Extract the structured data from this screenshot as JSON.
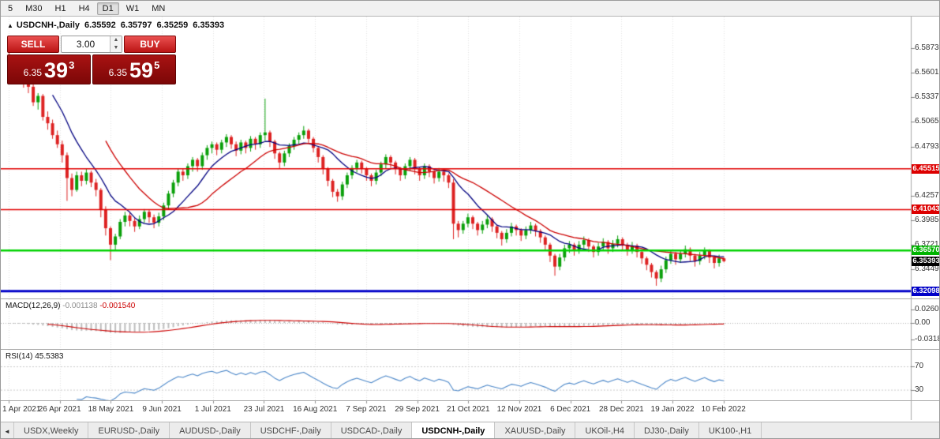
{
  "toolbar": {
    "timeframes": [
      "5",
      "M30",
      "H1",
      "H4",
      "D1",
      "W1",
      "MN"
    ],
    "active": "D1"
  },
  "chart_header": {
    "collapse_icon": "▲",
    "symbol": "USDCNH-,Daily",
    "open": "6.35592",
    "high": "6.35797",
    "low": "6.35259",
    "close": "6.35393"
  },
  "trade_panel": {
    "sell_label": "SELL",
    "buy_label": "BUY",
    "volume": "3.00",
    "sell_price": {
      "small": "6.35",
      "big": "39",
      "sup": "3"
    },
    "buy_price": {
      "small": "6.35",
      "big": "59",
      "sup": "5"
    }
  },
  "indicator_labels": {
    "macd_name": "MACD(12,26,9)",
    "macd_main": "-0.001138",
    "macd_signal": "-0.001540",
    "rsi_name": "RSI(14)",
    "rsi_value": "45.5383"
  },
  "tabs": {
    "scroll_left_icon": "◄",
    "items": [
      "USDX,Weekly",
      "EURUSD-,Daily",
      "AUDUSD-,Daily",
      "USDCHF-,Daily",
      "USDCAD-,Daily",
      "USDCNH-,Daily",
      "XAUUSD-,Daily",
      "UKOil-,H4",
      "DJ30-,Daily",
      "UK100-,H1"
    ],
    "active_index": 5
  },
  "chart_data": {
    "type": "candlestick",
    "symbol": "USDCNH-",
    "timeframe": "Daily",
    "up_color": "#0aa00a",
    "down_color": "#dd2222",
    "x_dates": [
      "1 Apr 2021",
      "26 Apr 2021",
      "18 May 2021",
      "9 Jun 2021",
      "1 Jul 2021",
      "23 Jul 2021",
      "16 Aug 2021",
      "7 Sep 2021",
      "29 Sep 2021",
      "21 Oct 2021",
      "12 Nov 2021",
      "6 Dec 2021",
      "28 Dec 2021",
      "19 Jan 2022",
      "10 Feb 2022"
    ],
    "y_axis": {
      "ticks": [
        "6.58730",
        "6.56010",
        "6.53370",
        "6.50650",
        "6.47930",
        "6.42570",
        "6.39850",
        "6.37210",
        "6.34490"
      ],
      "badges": [
        {
          "text": "6.45515",
          "color": "#dd0000",
          "kind": "resistance-line"
        },
        {
          "text": "6.41043",
          "color": "#dd0000",
          "kind": "resistance-line"
        },
        {
          "text": "6.36570",
          "color": "#00b400",
          "kind": "support-line"
        },
        {
          "text": "6.35393",
          "color": "#000000",
          "kind": "current-price"
        },
        {
          "text": "6.32098",
          "color": "#0000c8",
          "kind": "support-line"
        }
      ]
    },
    "hlines": [
      {
        "price": 6.45515,
        "color": "#e00000",
        "width": 1.5
      },
      {
        "price": 6.41043,
        "color": "#e00000",
        "width": 1.5
      },
      {
        "price": 6.3657,
        "color": "#00d200",
        "width": 2.5
      },
      {
        "price": 6.32098,
        "color": "#0000c8",
        "width": 3
      }
    ],
    "overlays": [
      {
        "name": "ma-fast",
        "period": 10,
        "color": "#000080"
      },
      {
        "name": "ma-slow",
        "period": 21,
        "color": "#cc0000"
      }
    ],
    "macd": {
      "params": [
        12,
        26,
        9
      ],
      "axis_ticks": [
        "0.02607",
        "0.00",
        "-0.03187"
      ],
      "bar_color": "#bdbdbd",
      "signal_color": "#cc0000"
    },
    "rsi": {
      "period": 14,
      "axis_ticks": [
        "70",
        "30"
      ],
      "levels": [
        70,
        30
      ],
      "color": "#4a86c8"
    },
    "candles": [
      [
        6.58,
        6.583,
        6.566,
        6.572
      ],
      [
        6.572,
        6.576,
        6.556,
        6.563
      ],
      [
        6.563,
        6.566,
        6.55,
        6.558
      ],
      [
        6.558,
        6.564,
        6.544,
        6.55
      ],
      [
        6.55,
        6.556,
        6.538,
        6.545
      ],
      [
        6.545,
        6.549,
        6.524,
        6.528
      ],
      [
        6.528,
        6.538,
        6.52,
        6.535
      ],
      [
        6.535,
        6.537,
        6.508,
        6.512
      ],
      [
        6.512,
        6.518,
        6.498,
        6.505
      ],
      [
        6.505,
        6.509,
        6.488,
        6.492
      ],
      [
        6.492,
        6.497,
        6.478,
        6.482
      ],
      [
        6.482,
        6.486,
        6.462,
        6.47
      ],
      [
        6.47,
        6.473,
        6.42,
        6.445
      ],
      [
        6.445,
        6.45,
        6.425,
        6.432
      ],
      [
        6.432,
        6.452,
        6.43,
        6.448
      ],
      [
        6.448,
        6.452,
        6.436,
        6.442
      ],
      [
        6.442,
        6.455,
        6.438,
        6.451
      ],
      [
        6.451,
        6.453,
        6.435,
        6.44
      ],
      [
        6.44,
        6.444,
        6.425,
        6.432
      ],
      [
        6.432,
        6.434,
        6.402,
        6.41
      ],
      [
        6.41,
        6.414,
        6.382,
        6.39
      ],
      [
        6.39,
        6.392,
        6.355,
        6.372
      ],
      [
        6.372,
        6.384,
        6.366,
        6.381
      ],
      [
        6.381,
        6.4,
        6.378,
        6.397
      ],
      [
        6.397,
        6.408,
        6.392,
        6.404
      ],
      [
        6.404,
        6.407,
        6.392,
        6.398
      ],
      [
        6.398,
        6.401,
        6.386,
        6.392
      ],
      [
        6.392,
        6.404,
        6.389,
        6.4
      ],
      [
        6.4,
        6.411,
        6.396,
        6.408
      ],
      [
        6.408,
        6.41,
        6.396,
        6.402
      ],
      [
        6.402,
        6.405,
        6.39,
        6.396
      ],
      [
        6.396,
        6.407,
        6.392,
        6.403
      ],
      [
        6.403,
        6.418,
        6.399,
        6.415
      ],
      [
        6.415,
        6.431,
        6.411,
        6.428
      ],
      [
        6.428,
        6.443,
        6.424,
        6.44
      ],
      [
        6.44,
        6.455,
        6.436,
        6.452
      ],
      [
        6.452,
        6.455,
        6.442,
        6.448
      ],
      [
        6.448,
        6.461,
        6.444,
        6.458
      ],
      [
        6.458,
        6.468,
        6.452,
        6.465
      ],
      [
        6.465,
        6.467,
        6.452,
        6.458
      ],
      [
        6.458,
        6.473,
        6.454,
        6.47
      ],
      [
        6.47,
        6.481,
        6.465,
        6.478
      ],
      [
        6.478,
        6.485,
        6.472,
        6.482
      ],
      [
        6.482,
        6.484,
        6.47,
        6.476
      ],
      [
        6.476,
        6.487,
        6.472,
        6.484
      ],
      [
        6.484,
        6.493,
        6.479,
        6.49
      ],
      [
        6.49,
        6.492,
        6.477,
        6.482
      ],
      [
        6.482,
        6.485,
        6.469,
        6.475
      ],
      [
        6.475,
        6.487,
        6.471,
        6.484
      ],
      [
        6.484,
        6.486,
        6.472,
        6.478
      ],
      [
        6.478,
        6.491,
        6.474,
        6.488
      ],
      [
        6.488,
        6.49,
        6.476,
        6.482
      ],
      [
        6.482,
        6.495,
        6.478,
        6.492
      ],
      [
        6.492,
        6.532,
        6.486,
        6.495
      ],
      [
        6.495,
        6.497,
        6.479,
        6.485
      ],
      [
        6.485,
        6.487,
        6.466,
        6.472
      ],
      [
        6.472,
        6.474,
        6.455,
        6.462
      ],
      [
        6.462,
        6.475,
        6.458,
        6.472
      ],
      [
        6.472,
        6.483,
        6.468,
        6.48
      ],
      [
        6.48,
        6.49,
        6.476,
        6.487
      ],
      [
        6.487,
        6.495,
        6.482,
        6.492
      ],
      [
        6.492,
        6.502,
        6.488,
        6.497
      ],
      [
        6.497,
        6.499,
        6.483,
        6.488
      ],
      [
        6.488,
        6.49,
        6.473,
        6.478
      ],
      [
        6.478,
        6.48,
        6.462,
        6.468
      ],
      [
        6.468,
        6.47,
        6.449,
        6.455
      ],
      [
        6.455,
        6.457,
        6.436,
        6.442
      ],
      [
        6.442,
        6.444,
        6.424,
        6.43
      ],
      [
        6.43,
        6.433,
        6.419,
        6.425
      ],
      [
        6.425,
        6.441,
        6.421,
        6.438
      ],
      [
        6.438,
        6.451,
        6.434,
        6.448
      ],
      [
        6.448,
        6.459,
        6.444,
        6.456
      ],
      [
        6.456,
        6.465,
        6.451,
        6.462
      ],
      [
        6.462,
        6.464,
        6.45,
        6.455
      ],
      [
        6.455,
        6.457,
        6.442,
        6.448
      ],
      [
        6.448,
        6.45,
        6.436,
        6.442
      ],
      [
        6.442,
        6.454,
        6.438,
        6.451
      ],
      [
        6.451,
        6.463,
        6.447,
        6.46
      ],
      [
        6.46,
        6.471,
        6.455,
        6.468
      ],
      [
        6.468,
        6.47,
        6.456,
        6.462
      ],
      [
        6.462,
        6.464,
        6.449,
        6.455
      ],
      [
        6.455,
        6.457,
        6.442,
        6.448
      ],
      [
        6.448,
        6.461,
        6.444,
        6.458
      ],
      [
        6.458,
        6.468,
        6.453,
        6.465
      ],
      [
        6.465,
        6.467,
        6.449,
        6.455
      ],
      [
        6.455,
        6.457,
        6.442,
        6.448
      ],
      [
        6.448,
        6.461,
        6.444,
        6.458
      ],
      [
        6.458,
        6.46,
        6.446,
        6.452
      ],
      [
        6.452,
        6.454,
        6.439,
        6.445
      ],
      [
        6.445,
        6.456,
        6.441,
        6.452
      ],
      [
        6.452,
        6.454,
        6.441,
        6.448
      ],
      [
        6.448,
        6.45,
        6.434,
        6.44
      ],
      [
        6.44,
        6.444,
        6.378,
        6.395
      ],
      [
        6.395,
        6.398,
        6.38,
        6.388
      ],
      [
        6.388,
        6.398,
        6.384,
        6.395
      ],
      [
        6.395,
        6.406,
        6.391,
        6.402
      ],
      [
        6.402,
        6.404,
        6.389,
        6.395
      ],
      [
        6.395,
        6.397,
        6.382,
        6.388
      ],
      [
        6.388,
        6.398,
        6.384,
        6.394
      ],
      [
        6.394,
        6.404,
        6.39,
        6.4
      ],
      [
        6.4,
        6.402,
        6.386,
        6.392
      ],
      [
        6.392,
        6.394,
        6.379,
        6.385
      ],
      [
        6.385,
        6.387,
        6.371,
        6.378
      ],
      [
        6.378,
        6.389,
        6.374,
        6.385
      ],
      [
        6.385,
        6.396,
        6.381,
        6.392
      ],
      [
        6.392,
        6.394,
        6.382,
        6.388
      ],
      [
        6.388,
        6.39,
        6.376,
        6.382
      ],
      [
        6.382,
        6.392,
        6.378,
        6.388
      ],
      [
        6.388,
        6.397,
        6.384,
        6.393
      ],
      [
        6.393,
        6.395,
        6.381,
        6.387
      ],
      [
        6.387,
        6.389,
        6.374,
        6.38
      ],
      [
        6.38,
        6.382,
        6.366,
        6.372
      ],
      [
        6.372,
        6.374,
        6.353,
        6.36
      ],
      [
        6.36,
        6.362,
        6.338,
        6.348
      ],
      [
        6.348,
        6.362,
        6.344,
        6.358
      ],
      [
        6.358,
        6.372,
        6.354,
        6.368
      ],
      [
        6.368,
        6.376,
        6.363,
        6.372
      ],
      [
        6.372,
        6.374,
        6.36,
        6.366
      ],
      [
        6.366,
        6.376,
        6.362,
        6.372
      ],
      [
        6.372,
        6.381,
        6.368,
        6.377
      ],
      [
        6.377,
        6.379,
        6.364,
        6.37
      ],
      [
        6.37,
        6.372,
        6.358,
        6.364
      ],
      [
        6.364,
        6.374,
        6.36,
        6.37
      ],
      [
        6.37,
        6.379,
        6.366,
        6.375
      ],
      [
        6.375,
        6.377,
        6.362,
        6.368
      ],
      [
        6.368,
        6.377,
        6.364,
        6.373
      ],
      [
        6.373,
        6.382,
        6.369,
        6.378
      ],
      [
        6.378,
        6.38,
        6.366,
        6.372
      ],
      [
        6.372,
        6.374,
        6.36,
        6.366
      ],
      [
        6.366,
        6.375,
        6.362,
        6.371
      ],
      [
        6.371,
        6.373,
        6.358,
        6.364
      ],
      [
        6.364,
        6.366,
        6.351,
        6.357
      ],
      [
        6.357,
        6.359,
        6.344,
        6.35
      ],
      [
        6.35,
        6.352,
        6.336,
        6.342
      ],
      [
        6.342,
        6.344,
        6.327,
        6.335
      ],
      [
        6.335,
        6.349,
        6.331,
        6.345
      ],
      [
        6.345,
        6.359,
        6.341,
        6.355
      ],
      [
        6.355,
        6.366,
        6.351,
        6.362
      ],
      [
        6.362,
        6.364,
        6.35,
        6.356
      ],
      [
        6.356,
        6.366,
        6.352,
        6.362
      ],
      [
        6.362,
        6.371,
        6.358,
        6.367
      ],
      [
        6.367,
        6.369,
        6.354,
        6.36
      ],
      [
        6.36,
        6.362,
        6.348,
        6.354
      ],
      [
        6.354,
        6.364,
        6.35,
        6.36
      ],
      [
        6.36,
        6.369,
        6.356,
        6.365
      ],
      [
        6.365,
        6.367,
        6.352,
        6.358
      ],
      [
        6.358,
        6.36,
        6.346,
        6.352
      ],
      [
        6.352,
        6.361,
        6.348,
        6.357
      ],
      [
        6.357,
        6.358,
        6.3526,
        6.3539
      ]
    ]
  }
}
